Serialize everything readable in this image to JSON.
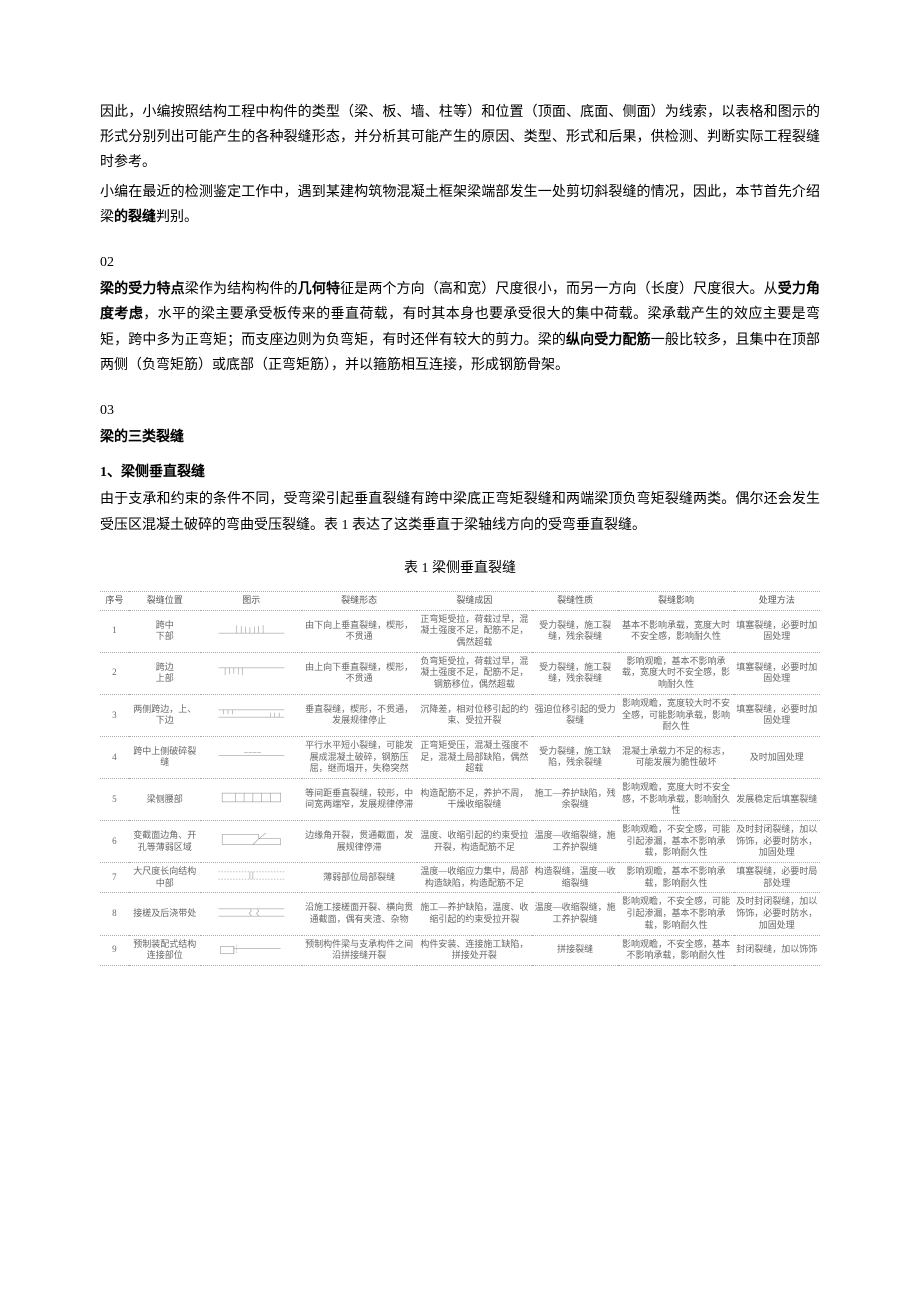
{
  "intro": {
    "p1": "因此，小编按照结构工程中构件的类型（梁、板、墙、柱等）和位置（顶面、底面、侧面）为线索，以表格和图示的形式分别列出可能产生的各种裂缝形态，并分析其可能产生的原因、类型、形式和后果，供检测、判断实际工程裂缝时参考。",
    "p2": "小编在最近的检测鉴定工作中，遇到某建构筑物混凝土框架梁端部发生一处剪切斜裂缝的情况，因此，本节首先介绍梁",
    "p2_bold": "的裂缝",
    "p2_tail": "判别。"
  },
  "s02": {
    "num": "02",
    "b1": "梁的受力特点",
    "t1": "梁作为结构构件的",
    "b2": "几何特",
    "t2": "征是两个方向（高和宽）尺度很小，而另一方向（长度）尺度很大。从",
    "b3": "受力角度考虑",
    "t3": "，水平的梁主要承受板传来的垂直荷载，有时其本身也要承受很大的集中荷载。梁承载产生的效应主要是弯矩，跨中多为正弯矩；而支座边则为负弯矩，有时还伴有较大的剪力。梁的",
    "b4": "纵向受力配筋",
    "t4": "一般比较多，且集中在顶部两侧（负弯矩筋）或底部（正弯矩筋），并以箍筋相互连接，形成钢筋骨架。"
  },
  "s03": {
    "num": "03",
    "title": "梁的三类裂缝"
  },
  "section1": {
    "heading": "1、梁侧垂直裂缝",
    "p": "由于支承和约束的条件不同，受弯梁引起垂直裂缝有跨中梁底正弯矩裂缝和两端梁顶负弯矩裂缝两类。偶尔还会发生受压区混凝土破碎的弯曲受压裂缝。表 1 表达了这类垂直于梁轴线方向的受弯垂直裂缝。"
  },
  "table1": {
    "caption": "表 1 梁侧垂直裂缝",
    "headers": [
      "序号",
      "裂缝位置",
      "图示",
      "裂缝形态",
      "裂缝成因",
      "裂缝性质",
      "裂缝影响",
      "处理方法"
    ],
    "rows": [
      {
        "idx": "1",
        "pos": "跨中\n下部",
        "form": "由下向上垂直裂缝，楔形，不贯通",
        "cause": "正弯矩受拉，荷载过早，混凝土强度不足，配筋不足，偶然超载",
        "nat": "受力裂缝，施工裂缝，残余裂缝",
        "eff": "基本不影响承载，宽度大时不安全感，影响耐久性",
        "treat": "填塞裂缝，必要时加固处理"
      },
      {
        "idx": "2",
        "pos": "跨边\n上部",
        "form": "由上向下垂直裂缝，楔形，不贯通",
        "cause": "负弯矩受拉，荷载过早，混凝土强度不足，配筋不足，钢筋移位，偶然超载",
        "nat": "受力裂缝，施工裂缝，残余裂缝",
        "eff": "影响观瞻，基本不影响承载，宽度大时不安全感，影响耐久性",
        "treat": "填塞裂缝，必要时加固处理"
      },
      {
        "idx": "3",
        "pos": "两侧跨边，上、下边",
        "form": "垂直裂缝，楔形，不贯通，发展规律停止",
        "cause": "沉降差，相对位移引起的约束、受拉开裂",
        "nat": "强迫位移引起的受力裂缝",
        "eff": "影响观瞻，宽度较大时不安全感，可能影响承载，影响耐久性",
        "treat": "填塞裂缝，必要时加固处理"
      },
      {
        "idx": "4",
        "pos": "跨中上侧破碎裂缝",
        "form": "平行水平短小裂缝，可能发展成混凝土破碎，钢筋压屈，继而塌开，失稳突然",
        "cause": "正弯矩受压，混凝土强度不足，混凝土局部缺陷，偶然超载",
        "nat": "受力裂缝，施工缺陷，残余裂缝",
        "eff": "混凝土承载力不足的标志，可能发展为脆性破坏",
        "treat": "及时加固处理"
      },
      {
        "idx": "5",
        "pos": "梁侧腰部",
        "form": "等间距垂直裂缝，较形，中间宽两端窄，发展规律停滞",
        "cause": "构造配筋不足，养护不周，干燥收缩裂缝",
        "nat": "施工—养护缺陷，残余裂缝",
        "eff": "影响观瞻，宽度大时不安全感，不影响承载，影响耐久性",
        "treat": "发展稳定后填塞裂缝"
      },
      {
        "idx": "6",
        "pos": "变截面边角、开孔等薄弱区域",
        "form": "边缘角开裂，贯通截面，发展规律停滞",
        "cause": "温度、收缩引起的约束受拉开裂，构造配筋不足",
        "nat": "温度—收缩裂缝，施工养护裂缝",
        "eff": "影响观瞻，不安全感，可能引起渗漏，基本不影响承载，影响耐久性",
        "treat": "及时封闭裂缝，加以饰饰，必要时防水，加固处理"
      },
      {
        "idx": "7",
        "pos": "大尺度长向结构中部",
        "form": "薄弱部位局部裂缝",
        "cause": "温度—收缩应力集中，局部构造缺陷，构造配筋不足",
        "nat": "构造裂缝，温度—收缩裂缝",
        "eff": "影响观瞻，基本不影响承载，影响耐久性",
        "treat": "填塞裂缝，必要时局部处理"
      },
      {
        "idx": "8",
        "pos": "接槎及后浇带处",
        "form": "沿施工接槎面开裂、横向贯通截面，偶有夹渣、杂物",
        "cause": "施工—养护缺陷，温度、收缩引起的约束受拉开裂",
        "nat": "温度—收缩裂缝，施工养护裂缝",
        "eff": "影响观瞻，不安全感，可能引起渗漏，基本不影响承载，影响耐久性",
        "treat": "及时封闭裂缝，加以饰饰，必要时防水，加固处理"
      },
      {
        "idx": "9",
        "pos": "预制装配式结构连接部位",
        "form": "预制构件梁与支承构件之间沿拼接缝开裂",
        "cause": "构件安装、连接施工缺陷，拼接处开裂",
        "nat": "拼接裂缝",
        "eff": "影响观瞻，不安全感，基本不影响承载，影响耐久性",
        "treat": "封闭裂缝，加以饰饰"
      }
    ],
    "svg_stroke": "#888888",
    "svg_stroke_width": 0.7
  }
}
